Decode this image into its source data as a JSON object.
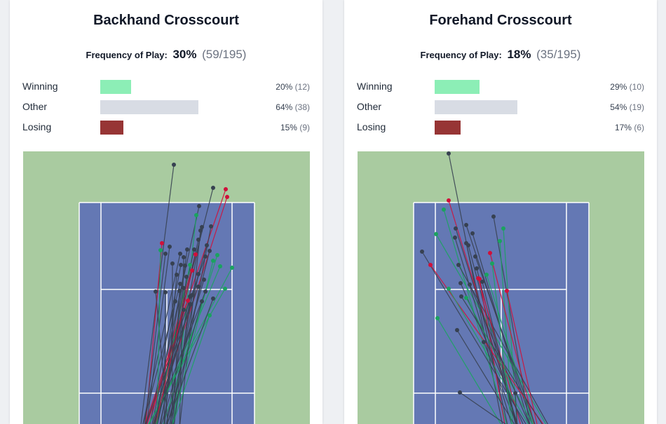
{
  "panels": [
    {
      "title": "Backhand Crosscourt",
      "frequency": {
        "label": "Frequency of Play:",
        "pct": "30%",
        "count": "(59/195)"
      },
      "outcomes": [
        {
          "label": "Winning",
          "pct": "20%",
          "count": "(12)",
          "fraction": 0.2,
          "color": "#8ceeb6"
        },
        {
          "label": "Other",
          "pct": "64%",
          "count": "(38)",
          "fraction": 0.64,
          "color": "#d8dce4"
        },
        {
          "label": "Losing",
          "pct": "15%",
          "count": "(9)",
          "fraction": 0.15,
          "color": "#973535"
        }
      ]
    },
    {
      "title": "Forehand Crosscourt",
      "frequency": {
        "label": "Frequency of Play:",
        "pct": "18%",
        "count": "(35/195)"
      },
      "outcomes": [
        {
          "label": "Winning",
          "pct": "29%",
          "count": "(10)",
          "fraction": 0.29,
          "color": "#8ceeb6"
        },
        {
          "label": "Other",
          "pct": "54%",
          "count": "(19)",
          "fraction": 0.54,
          "color": "#d8dce4"
        },
        {
          "label": "Losing",
          "pct": "17%",
          "count": "(6)",
          "fraction": 0.17,
          "color": "#973535"
        }
      ]
    }
  ],
  "colors": {
    "surround": "#a9cba0",
    "court": "#6478b4",
    "lines": "#ffffff",
    "shot_other": "#374151",
    "shot_winning": "#1aa35f",
    "shot_losing": "#d0103a"
  }
}
